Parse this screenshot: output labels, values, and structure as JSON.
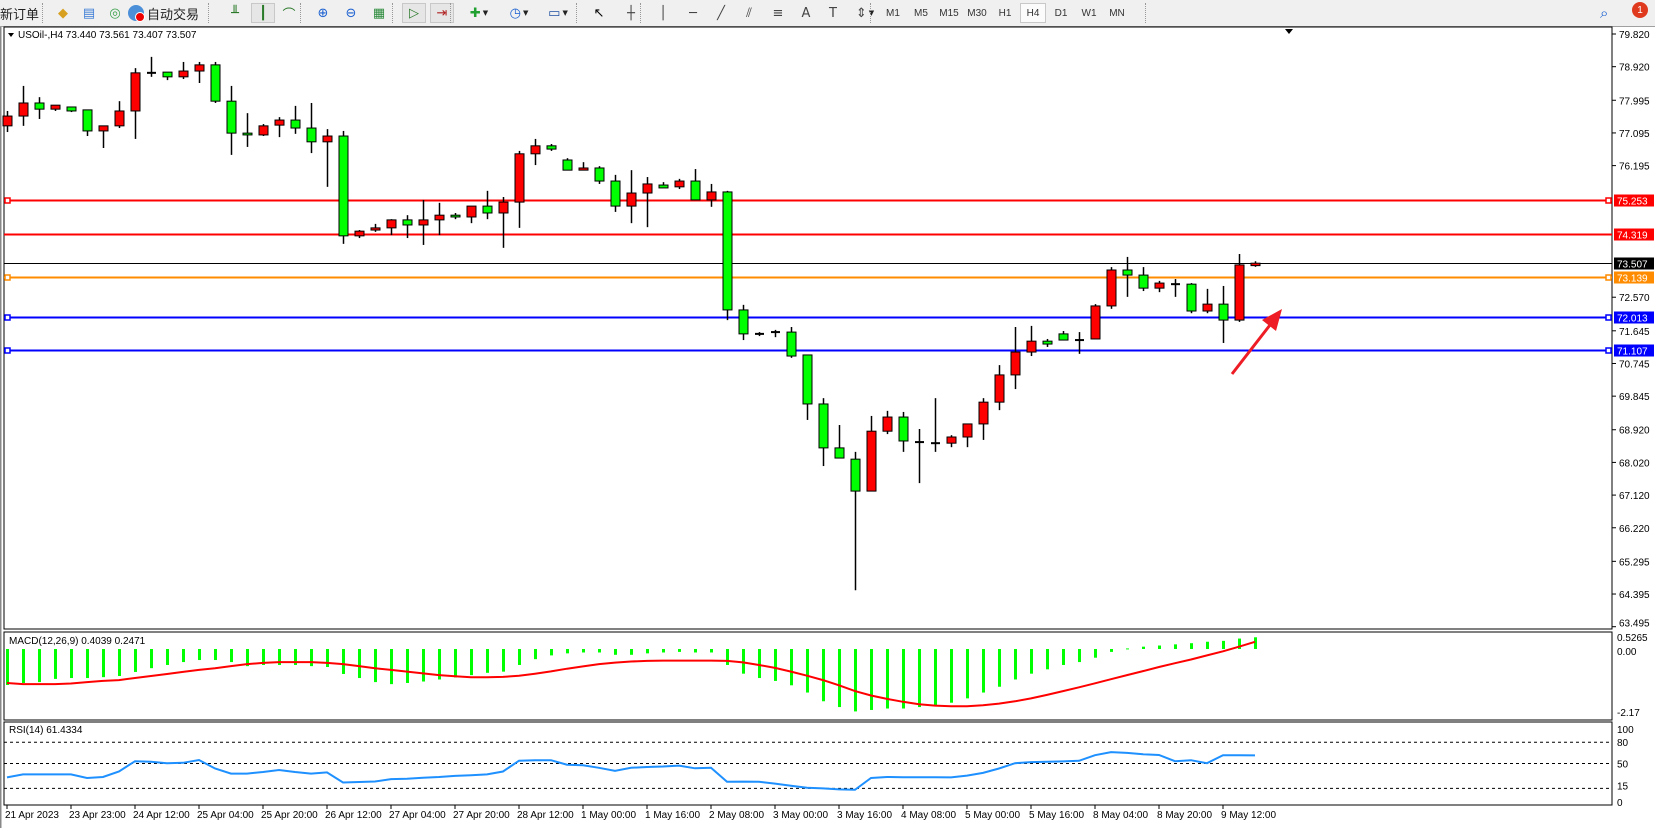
{
  "toolbar": {
    "new_order_label": "新订单",
    "auto_trade_label": "自动交易",
    "timeframes": [
      "M1",
      "M5",
      "M15",
      "M30",
      "H1",
      "H4",
      "D1",
      "W1",
      "MN"
    ],
    "active_timeframe": "H4",
    "notification_count": "1",
    "icons": [
      "market-watch-icon",
      "data-window-icon",
      "signals-icon",
      "auto-trading-icon",
      "bar-chart-icon",
      "candlestick-icon",
      "line-chart-icon",
      "zoom-in-icon",
      "zoom-out-icon",
      "tile-windows-icon",
      "auto-scroll-icon",
      "chart-shift-icon",
      "indicators-icon",
      "periods-icon",
      "templates-icon",
      "cursor-icon",
      "crosshair-icon",
      "vertical-line-icon",
      "horizontal-line-icon",
      "trendline-icon",
      "fibo-channel-icon",
      "fibo-retracement-icon",
      "text-icon",
      "text-label-icon",
      "arrows-icon",
      "search-icon",
      "notification-icon"
    ]
  },
  "chart": {
    "header": "USOil-,H4  73.440 73.561 73.407 73.507",
    "symbol": "USOil-",
    "timeframe": "H4",
    "ohlc_current": {
      "open": 73.44,
      "high": 73.561,
      "low": 73.407,
      "close": 73.507
    },
    "bid_label": "73.507",
    "bid": 73.507,
    "colors": {
      "bull": "#ff0000",
      "bear": "#00ff00",
      "wick": "#000000",
      "macd_hist": "#00ff00",
      "macd_signal": "#ff0000",
      "rsi": "#1e90ff",
      "annotation_arrow": "#ee1c24"
    },
    "price_ticks": [
      "79.820",
      "78.920",
      "77.995",
      "77.095",
      "76.195",
      "72.570",
      "71.645",
      "70.745",
      "69.845",
      "68.920",
      "68.020",
      "67.120",
      "66.220",
      "65.295",
      "64.395",
      "63.495"
    ],
    "levels": [
      {
        "label": "75.253",
        "price": 75.253,
        "color": "#ff0000",
        "anchored": true
      },
      {
        "label": "74.319",
        "price": 74.319,
        "color": "#ff0000",
        "anchored": false
      },
      {
        "label": "73.139",
        "price": 73.139,
        "color": "#ff8c00",
        "anchored": true
      },
      {
        "label": "72.013",
        "price": 72.013,
        "color": "#0000ff",
        "anchored": true
      },
      {
        "label": "71.107",
        "price": 71.107,
        "color": "#0000ff",
        "anchored": true
      }
    ],
    "time_labels": [
      "21 Apr 2023",
      "23 Apr 23:00",
      "24 Apr 12:00",
      "25 Apr 04:00",
      "25 Apr 20:00",
      "26 Apr 12:00",
      "27 Apr 04:00",
      "27 Apr 20:00",
      "28 Apr 12:00",
      "1 May 00:00",
      "1 May 16:00",
      "2 May 08:00",
      "3 May 00:00",
      "3 May 16:00",
      "4 May 08:00",
      "5 May 00:00",
      "5 May 16:00",
      "8 May 04:00",
      "8 May 20:00",
      "9 May 12:00"
    ],
    "macd": {
      "label": "MACD(12,26,9) 0.4039 0.2471",
      "ticks": [
        "0.5265",
        "0.00",
        "-2.17"
      ]
    },
    "rsi": {
      "label": "RSI(14) 61.4334",
      "ticks": [
        "100",
        "80",
        "50",
        "15",
        "0"
      ],
      "levels": [
        80,
        50,
        15
      ]
    }
  },
  "chart_data": {
    "type": "candlestick",
    "price_range": [
      63.495,
      79.82
    ],
    "candles_ohlc": [
      [
        77.29,
        77.7,
        77.12,
        77.56
      ],
      [
        77.56,
        78.39,
        77.29,
        77.92
      ],
      [
        77.92,
        78.08,
        77.48,
        77.75
      ],
      [
        77.75,
        77.86,
        77.7,
        77.86
      ],
      [
        77.81,
        77.81,
        77.67,
        77.7
      ],
      [
        77.73,
        77.73,
        77.01,
        77.15
      ],
      [
        77.15,
        77.29,
        76.68,
        77.29
      ],
      [
        77.29,
        77.97,
        77.23,
        77.7
      ],
      [
        77.7,
        78.88,
        76.93,
        78.75
      ],
      [
        78.75,
        79.19,
        78.64,
        78.75
      ],
      [
        78.77,
        78.77,
        78.55,
        78.64
      ],
      [
        78.64,
        79.05,
        78.58,
        78.8
      ],
      [
        78.8,
        79.05,
        78.47,
        78.97
      ],
      [
        78.97,
        79.05,
        77.92,
        77.97
      ],
      [
        77.97,
        78.39,
        76.49,
        77.09
      ],
      [
        77.09,
        77.64,
        76.71,
        77.04
      ],
      [
        77.04,
        77.34,
        77.01,
        77.29
      ],
      [
        77.31,
        77.53,
        76.98,
        77.45
      ],
      [
        77.45,
        77.84,
        77.07,
        77.23
      ],
      [
        77.23,
        77.92,
        76.54,
        76.85
      ],
      [
        76.85,
        77.2,
        75.61,
        77.01
      ],
      [
        77.01,
        77.15,
        74.04,
        74.26
      ],
      [
        74.26,
        74.42,
        74.2,
        74.39
      ],
      [
        74.42,
        74.59,
        74.37,
        74.48
      ],
      [
        74.48,
        74.72,
        74.28,
        74.7
      ],
      [
        74.7,
        74.83,
        74.2,
        74.56
      ],
      [
        74.56,
        75.25,
        74.01,
        74.7
      ],
      [
        74.7,
        75.17,
        74.28,
        74.83
      ],
      [
        74.83,
        74.89,
        74.72,
        74.78
      ],
      [
        74.78,
        75.08,
        74.61,
        75.08
      ],
      [
        75.08,
        75.5,
        74.72,
        74.89
      ],
      [
        74.89,
        75.33,
        73.93,
        75.19
      ],
      [
        75.19,
        76.6,
        74.48,
        76.52
      ],
      [
        76.52,
        76.93,
        76.21,
        76.74
      ],
      [
        76.74,
        76.79,
        76.6,
        76.65
      ],
      [
        76.35,
        76.4,
        76.07,
        76.07
      ],
      [
        76.07,
        76.29,
        76.07,
        76.13
      ],
      [
        76.13,
        76.18,
        75.69,
        75.77
      ],
      [
        75.77,
        75.94,
        74.92,
        75.08
      ],
      [
        75.08,
        76.07,
        74.61,
        75.44
      ],
      [
        75.44,
        75.88,
        74.5,
        75.69
      ],
      [
        75.66,
        75.74,
        75.58,
        75.58
      ],
      [
        75.61,
        75.83,
        75.55,
        75.77
      ],
      [
        75.77,
        76.1,
        75.25,
        75.25
      ],
      [
        75.25,
        75.69,
        75.06,
        75.47
      ],
      [
        75.47,
        75.5,
        71.94,
        72.22
      ],
      [
        72.22,
        72.36,
        71.39,
        71.56
      ],
      [
        71.56,
        71.61,
        71.5,
        71.56
      ],
      [
        71.61,
        71.67,
        71.47,
        71.61
      ],
      [
        71.61,
        71.75,
        70.9,
        70.95
      ],
      [
        70.98,
        70.98,
        69.19,
        69.63
      ],
      [
        69.63,
        69.79,
        67.92,
        68.42
      ],
      [
        68.42,
        69.05,
        68.14,
        68.14
      ],
      [
        68.11,
        68.31,
        64.5,
        67.23
      ],
      [
        67.23,
        69.3,
        67.23,
        68.88
      ],
      [
        68.88,
        69.44,
        68.8,
        69.27
      ],
      [
        69.27,
        69.41,
        68.31,
        68.61
      ],
      [
        68.58,
        68.94,
        67.45,
        68.58
      ],
      [
        68.55,
        69.79,
        68.31,
        68.55
      ],
      [
        68.55,
        68.77,
        68.44,
        68.72
      ],
      [
        68.72,
        69.08,
        68.44,
        69.08
      ],
      [
        69.08,
        69.79,
        68.64,
        69.68
      ],
      [
        69.68,
        70.7,
        69.46,
        70.43
      ],
      [
        70.43,
        71.75,
        70.04,
        71.06
      ],
      [
        71.06,
        71.78,
        70.95,
        71.36
      ],
      [
        71.36,
        71.42,
        71.2,
        71.28
      ],
      [
        71.56,
        71.64,
        71.39,
        71.39
      ],
      [
        71.39,
        71.61,
        71.01,
        71.39
      ],
      [
        71.42,
        72.38,
        71.42,
        72.33
      ],
      [
        72.33,
        73.4,
        72.25,
        73.32
      ],
      [
        73.32,
        73.68,
        72.58,
        73.18
      ],
      [
        73.18,
        73.4,
        72.74,
        72.82
      ],
      [
        72.82,
        73.02,
        72.71,
        72.96
      ],
      [
        72.93,
        73.07,
        72.58,
        72.93
      ],
      [
        72.93,
        72.96,
        72.13,
        72.19
      ],
      [
        72.19,
        72.8,
        72.13,
        72.38
      ],
      [
        72.38,
        72.88,
        71.31,
        71.94
      ],
      [
        71.94,
        73.76,
        71.89,
        73.46
      ],
      [
        73.44,
        73.561,
        73.407,
        73.507
      ]
    ],
    "macd_main": [
      -1.24,
      -1.17,
      -1.14,
      -1.03,
      -1.0,
      -1.0,
      -0.97,
      -0.93,
      -0.79,
      -0.66,
      -0.55,
      -0.45,
      -0.38,
      -0.38,
      -0.45,
      -0.59,
      -0.55,
      -0.55,
      -0.55,
      -0.59,
      -0.62,
      -0.86,
      -1.0,
      -1.14,
      -1.21,
      -1.17,
      -1.12,
      -1.05,
      -0.98,
      -0.9,
      -0.82,
      -0.78,
      -0.55,
      -0.35,
      -0.22,
      -0.15,
      -0.12,
      -0.12,
      -0.2,
      -0.2,
      -0.15,
      -0.12,
      -0.1,
      -0.12,
      -0.12,
      -0.55,
      -0.85,
      -1.0,
      -1.1,
      -1.25,
      -1.5,
      -1.8,
      -2.0,
      -2.15,
      -2.1,
      -2.05,
      -2.05,
      -2.0,
      -1.95,
      -1.85,
      -1.7,
      -1.5,
      -1.3,
      -1.05,
      -0.85,
      -0.7,
      -0.55,
      -0.45,
      -0.3,
      -0.1,
      0.02,
      0.08,
      0.12,
      0.16,
      0.2,
      0.25,
      0.28,
      0.36,
      0.4039
    ],
    "macd_signal": [
      -1.17,
      -1.21,
      -1.21,
      -1.21,
      -1.19,
      -1.14,
      -1.1,
      -1.07,
      -1.0,
      -0.93,
      -0.86,
      -0.79,
      -0.72,
      -0.66,
      -0.59,
      -0.52,
      -0.48,
      -0.45,
      -0.45,
      -0.45,
      -0.48,
      -0.52,
      -0.59,
      -0.66,
      -0.72,
      -0.78,
      -0.84,
      -0.9,
      -0.94,
      -0.97,
      -0.97,
      -0.96,
      -0.92,
      -0.85,
      -0.77,
      -0.68,
      -0.6,
      -0.52,
      -0.47,
      -0.43,
      -0.41,
      -0.4,
      -0.4,
      -0.4,
      -0.4,
      -0.41,
      -0.46,
      -0.55,
      -0.65,
      -0.78,
      -0.92,
      -1.07,
      -1.25,
      -1.45,
      -1.6,
      -1.72,
      -1.82,
      -1.9,
      -1.95,
      -1.97,
      -1.97,
      -1.94,
      -1.88,
      -1.8,
      -1.7,
      -1.58,
      -1.45,
      -1.32,
      -1.18,
      -1.04,
      -0.9,
      -0.76,
      -0.62,
      -0.49,
      -0.36,
      -0.22,
      -0.08,
      0.08,
      0.2471
    ],
    "macd_range": [
      -2.17,
      0.5265
    ],
    "rsi": [
      30.4,
      34.6,
      34.6,
      34.6,
      34.6,
      29.6,
      31,
      38.8,
      53.3,
      52.5,
      50.4,
      51,
      55,
      43,
      35.8,
      35.8,
      38,
      40.8,
      38,
      35.8,
      37.5,
      23.3,
      24,
      24.6,
      28,
      28.5,
      30,
      31,
      32.5,
      33.5,
      34.6,
      38.8,
      54,
      54.5,
      54.6,
      48.3,
      47.5,
      44,
      39.6,
      44,
      45,
      45.8,
      47,
      43.3,
      44,
      24.2,
      24.5,
      24.2,
      21.7,
      18.8,
      15.8,
      15,
      13.5,
      13,
      29.6,
      31,
      30.5,
      30.5,
      30.5,
      30.4,
      33,
      36.7,
      43,
      50.4,
      52,
      52.5,
      53,
      53.8,
      61.7,
      66,
      65,
      63,
      62,
      53.3,
      54.6,
      50.4,
      61.7,
      61.5,
      61.4334
    ],
    "rsi_range": [
      0,
      100
    ],
    "time_label_every_n_candles": 4
  }
}
